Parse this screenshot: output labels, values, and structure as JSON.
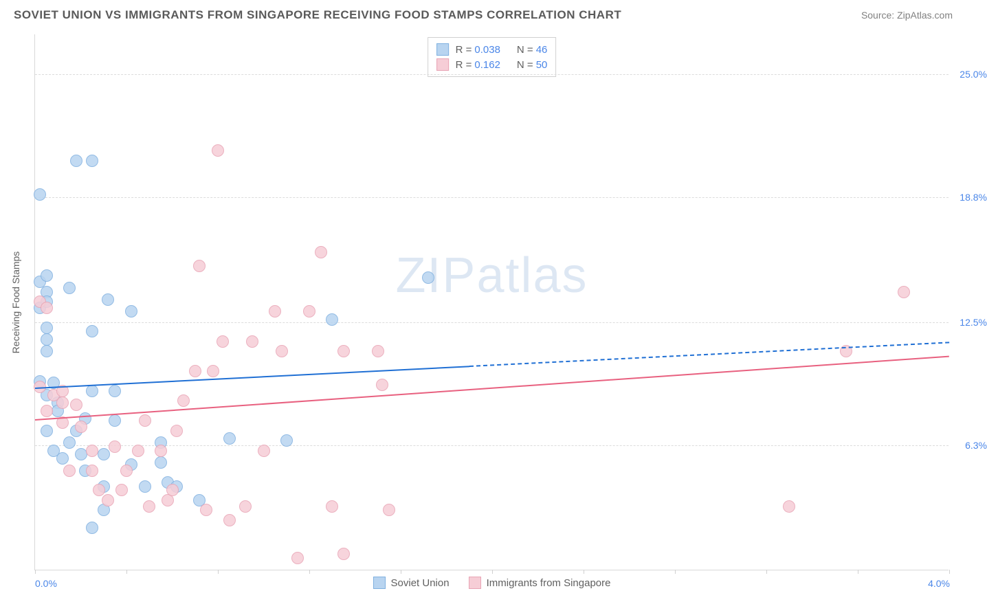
{
  "header": {
    "title": "SOVIET UNION VS IMMIGRANTS FROM SINGAPORE RECEIVING FOOD STAMPS CORRELATION CHART",
    "source": "Source: ZipAtlas.com"
  },
  "watermark": {
    "bold": "ZIP",
    "thin": "atlas"
  },
  "chart": {
    "type": "scatter",
    "ylabel": "Receiving Food Stamps",
    "xlim": [
      0.0,
      4.0
    ],
    "ylim": [
      0.0,
      27.0
    ],
    "ytick_labels": [
      "6.3%",
      "12.5%",
      "18.8%",
      "25.0%"
    ],
    "ytick_values": [
      6.3,
      12.5,
      18.8,
      25.0
    ],
    "xaxis_label_left": "0.0%",
    "xaxis_label_right": "4.0%",
    "xtick_values": [
      0.0,
      0.4,
      0.8,
      1.2,
      1.6,
      2.0,
      2.4,
      2.8,
      3.2,
      3.6,
      4.0
    ],
    "background_color": "#ffffff",
    "grid_color": "#dcdcdc",
    "series": [
      {
        "name": "Soviet Union",
        "color_fill": "#b8d4f0",
        "color_stroke": "#7fb0e0",
        "trend_color": "#1f6fd4",
        "r": 0.038,
        "n": 46,
        "marker_radius": 9,
        "trend": {
          "x0": 0.0,
          "y0": 9.2,
          "x1": 1.9,
          "y1": 10.3,
          "dash_x1": 4.0,
          "dash_y1": 11.5
        },
        "points": [
          [
            0.02,
            18.9
          ],
          [
            0.18,
            20.6
          ],
          [
            0.25,
            20.6
          ],
          [
            0.02,
            14.5
          ],
          [
            0.05,
            14.0
          ],
          [
            0.02,
            13.2
          ],
          [
            0.05,
            13.5
          ],
          [
            0.32,
            13.6
          ],
          [
            0.05,
            12.2
          ],
          [
            0.05,
            11.6
          ],
          [
            0.02,
            9.5
          ],
          [
            0.08,
            9.4
          ],
          [
            0.05,
            8.8
          ],
          [
            0.1,
            8.4
          ],
          [
            0.18,
            7.0
          ],
          [
            0.12,
            5.6
          ],
          [
            0.2,
            5.8
          ],
          [
            0.22,
            5.0
          ],
          [
            0.3,
            4.2
          ],
          [
            0.25,
            2.1
          ],
          [
            0.15,
            6.4
          ],
          [
            0.25,
            9.0
          ],
          [
            0.35,
            9.0
          ],
          [
            0.42,
            13.0
          ],
          [
            0.22,
            7.6
          ],
          [
            0.35,
            7.5
          ],
          [
            0.55,
            6.4
          ],
          [
            0.48,
            4.2
          ],
          [
            0.58,
            4.4
          ],
          [
            0.62,
            4.2
          ],
          [
            0.72,
            3.5
          ],
          [
            0.85,
            6.6
          ],
          [
            1.1,
            6.5
          ],
          [
            1.3,
            12.6
          ],
          [
            1.72,
            14.7
          ],
          [
            0.05,
            7.0
          ],
          [
            0.08,
            6.0
          ],
          [
            0.3,
            5.8
          ],
          [
            0.25,
            12.0
          ],
          [
            0.3,
            3.0
          ],
          [
            0.05,
            14.8
          ],
          [
            0.15,
            14.2
          ],
          [
            0.1,
            8.0
          ],
          [
            0.05,
            11.0
          ],
          [
            0.42,
            5.3
          ],
          [
            0.55,
            5.4
          ]
        ]
      },
      {
        "name": "Immigrants from Singapore",
        "color_fill": "#f6cdd6",
        "color_stroke": "#e8a3b4",
        "trend_color": "#e8607f",
        "r": 0.162,
        "n": 50,
        "marker_radius": 9,
        "trend": {
          "x0": 0.0,
          "y0": 7.6,
          "x1": 4.0,
          "y1": 10.8
        },
        "points": [
          [
            0.02,
            13.5
          ],
          [
            0.05,
            13.2
          ],
          [
            0.08,
            8.8
          ],
          [
            0.12,
            8.4
          ],
          [
            0.12,
            9.0
          ],
          [
            0.18,
            8.3
          ],
          [
            0.12,
            7.4
          ],
          [
            0.2,
            7.2
          ],
          [
            0.15,
            5.0
          ],
          [
            0.25,
            5.0
          ],
          [
            0.28,
            4.0
          ],
          [
            0.25,
            6.0
          ],
          [
            0.35,
            6.2
          ],
          [
            0.32,
            3.5
          ],
          [
            0.38,
            4.0
          ],
          [
            0.4,
            5.0
          ],
          [
            0.45,
            6.0
          ],
          [
            0.48,
            7.5
          ],
          [
            0.5,
            3.2
          ],
          [
            0.58,
            3.5
          ],
          [
            0.6,
            4.0
          ],
          [
            0.55,
            6.0
          ],
          [
            0.62,
            7.0
          ],
          [
            0.65,
            8.5
          ],
          [
            0.72,
            15.3
          ],
          [
            0.7,
            10.0
          ],
          [
            0.78,
            10.0
          ],
          [
            0.75,
            3.0
          ],
          [
            0.8,
            21.1
          ],
          [
            0.82,
            11.5
          ],
          [
            0.85,
            2.5
          ],
          [
            0.92,
            3.2
          ],
          [
            0.95,
            11.5
          ],
          [
            1.0,
            6.0
          ],
          [
            1.05,
            13.0
          ],
          [
            1.08,
            11.0
          ],
          [
            1.15,
            0.6
          ],
          [
            1.2,
            13.0
          ],
          [
            1.25,
            16.0
          ],
          [
            1.3,
            3.2
          ],
          [
            1.35,
            0.8
          ],
          [
            1.35,
            11.0
          ],
          [
            1.5,
            11.0
          ],
          [
            1.52,
            9.3
          ],
          [
            1.55,
            3.0
          ],
          [
            3.3,
            3.2
          ],
          [
            3.55,
            11.0
          ],
          [
            3.8,
            14.0
          ],
          [
            0.02,
            9.2
          ],
          [
            0.05,
            8.0
          ]
        ]
      }
    ],
    "legend_bottom": [
      {
        "label": "Soviet Union",
        "fill": "#b8d4f0",
        "stroke": "#7fb0e0"
      },
      {
        "label": "Immigrants from Singapore",
        "fill": "#f6cdd6",
        "stroke": "#e8a3b4"
      }
    ]
  }
}
